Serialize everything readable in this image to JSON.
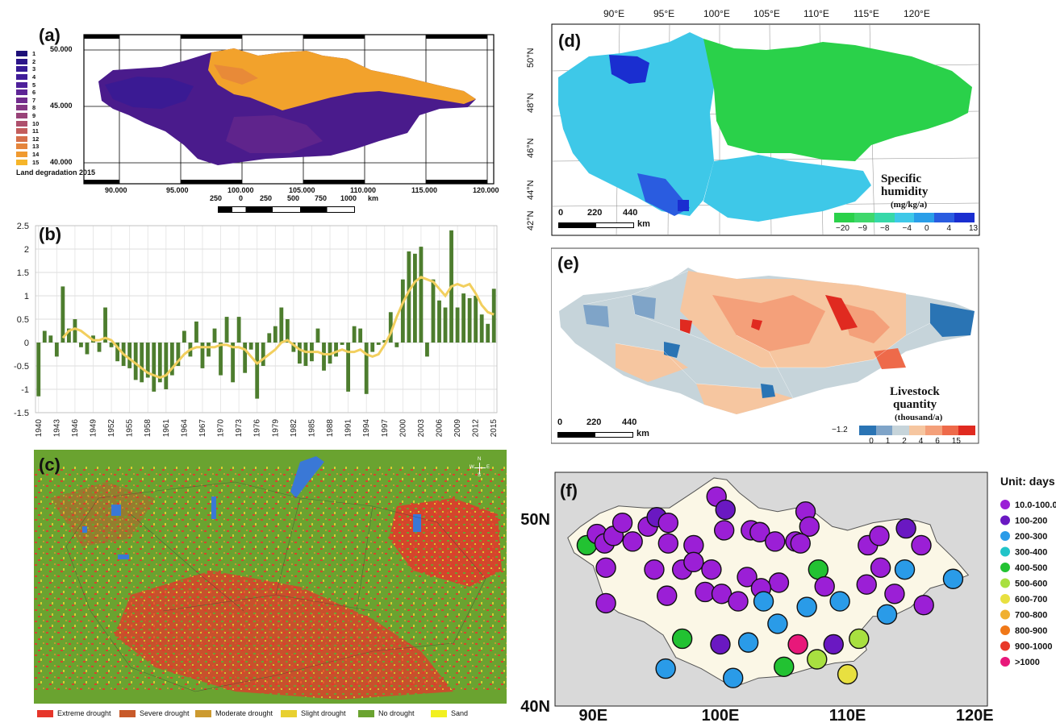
{
  "colors": {
    "veg_green": "#6aa330",
    "drought_red": "#e6362b",
    "water_blue": "#3a78d6",
    "bar_green": "#4d7d2e",
    "trend_yellow": "#f2cf5e",
    "deg_low": "#4a1b8c",
    "deg_high": "#f2a22c"
  },
  "panel_a": {
    "label": "(a)",
    "legend_items": [
      "1",
      "2",
      "3",
      "4",
      "5",
      "6",
      "7",
      "8",
      "9",
      "10",
      "11",
      "12",
      "13",
      "14",
      "15"
    ],
    "legend_colors": [
      "#1d0f78",
      "#2b1589",
      "#361a95",
      "#411d9a",
      "#4e209a",
      "#5e2596",
      "#712b8d",
      "#853683",
      "#994278",
      "#ae4f6c",
      "#c35d5c",
      "#d6704a",
      "#e5853c",
      "#f09a30",
      "#f6b52a"
    ],
    "legend_title": "Land degradation 2015",
    "lat_ticks": [
      "50.000",
      "45.000",
      "40.000"
    ],
    "lon_ticks": [
      "90.000",
      "95.000",
      "100.000",
      "105.000",
      "110.000",
      "115.000",
      "120.000"
    ],
    "scale_labels": [
      "250",
      "0",
      "250",
      "500",
      "750",
      "1000",
      "km"
    ]
  },
  "panel_b": {
    "label": "(b)"
  },
  "chart_data": [
    {
      "type": "bar",
      "panel": "(b)",
      "title": "",
      "xlabel": "",
      "ylabel": "",
      "ylim": [
        -1.5,
        2.5
      ],
      "yticks": [
        "2.5",
        "2",
        "1.5",
        "1",
        "0.5",
        "0",
        "-0.5",
        "-1",
        "-1.5"
      ],
      "xticks": [
        "1940",
        "1943",
        "1946",
        "1949",
        "1952",
        "1955",
        "1958",
        "1961",
        "1964",
        "1967",
        "1970",
        "1973",
        "1976",
        "1979",
        "1982",
        "1985",
        "1988",
        "1991",
        "1994",
        "1997",
        "2000",
        "2003",
        "2006",
        "2009",
        "2012",
        "2015"
      ],
      "x": [
        1940,
        1941,
        1942,
        1943,
        1944,
        1945,
        1946,
        1947,
        1948,
        1949,
        1950,
        1951,
        1952,
        1953,
        1954,
        1955,
        1956,
        1957,
        1958,
        1959,
        1960,
        1961,
        1962,
        1963,
        1964,
        1965,
        1966,
        1967,
        1968,
        1969,
        1970,
        1971,
        1972,
        1973,
        1974,
        1975,
        1976,
        1977,
        1978,
        1979,
        1980,
        1981,
        1982,
        1983,
        1984,
        1985,
        1986,
        1987,
        1988,
        1989,
        1990,
        1991,
        1992,
        1993,
        1994,
        1995,
        1996,
        1997,
        1998,
        1999,
        2000,
        2001,
        2002,
        2003,
        2004,
        2005,
        2006,
        2007,
        2008,
        2009,
        2010,
        2011,
        2012,
        2013,
        2014,
        2015
      ],
      "series": [
        {
          "values": [
            -1.15,
            0.25,
            0.15,
            -0.3,
            1.2,
            0.3,
            0.5,
            -0.1,
            -0.25,
            0.15,
            -0.2,
            0.75,
            -0.1,
            -0.4,
            -0.5,
            -0.55,
            -0.8,
            -0.85,
            -0.75,
            -1.05,
            -0.85,
            -1.0,
            -0.7,
            -0.5,
            0.25,
            -0.3,
            0.45,
            -0.55,
            -0.3,
            0.3,
            -0.7,
            0.55,
            -0.85,
            0.55,
            -0.65,
            -0.15,
            -1.2,
            -0.5,
            0.2,
            0.35,
            0.75,
            0.5,
            -0.2,
            -0.45,
            -0.5,
            -0.4,
            0.3,
            -0.6,
            -0.45,
            -0.3,
            -0.05,
            -1.05,
            0.35,
            0.3,
            -1.1,
            -0.2,
            -0.05,
            0.05,
            0.65,
            -0.1,
            1.35,
            1.95,
            1.9,
            2.05,
            -0.3,
            1.35,
            0.9,
            0.75,
            2.4,
            0.75,
            1.05,
            0.95,
            1.0,
            0.6,
            0.4,
            1.15
          ]
        },
        {
          "values": [
            null,
            null,
            null,
            null,
            0.1,
            0.25,
            0.3,
            0.25,
            0.15,
            0.05,
            0.05,
            0.1,
            0.05,
            -0.1,
            -0.25,
            -0.35,
            -0.45,
            -0.55,
            -0.65,
            -0.7,
            -0.75,
            -0.7,
            -0.55,
            -0.4,
            -0.25,
            -0.15,
            -0.1,
            -0.1,
            -0.1,
            -0.1,
            -0.05,
            -0.05,
            -0.1,
            -0.1,
            -0.15,
            -0.3,
            -0.45,
            -0.35,
            -0.25,
            -0.15,
            0.0,
            0.05,
            -0.05,
            -0.15,
            -0.2,
            -0.2,
            -0.2,
            -0.25,
            -0.25,
            -0.2,
            -0.15,
            -0.2,
            -0.2,
            -0.15,
            -0.25,
            -0.3,
            -0.25,
            -0.05,
            0.2,
            0.55,
            0.85,
            1.1,
            1.3,
            1.4,
            1.35,
            1.3,
            1.15,
            1.0,
            1.2,
            1.25,
            1.2,
            1.25,
            1.05,
            0.8,
            0.65,
            0.6
          ]
        }
      ]
    },
    {
      "type": "scatter",
      "panel": "(f)",
      "title": "",
      "xlabel": "",
      "ylabel": "",
      "xticks": [
        "90E",
        "100E",
        "110E",
        "120E"
      ],
      "yticks": [
        "50N",
        "40N"
      ],
      "xlim": [
        87,
        121
      ],
      "ylim": [
        40,
        52.5
      ],
      "legend_title": "Unit: days",
      "legend": [
        {
          "label": "10.0-100.0",
          "color": "#9b1fd6"
        },
        {
          "label": "100-200",
          "color": "#6a18c2"
        },
        {
          "label": "200-300",
          "color": "#2a9be8"
        },
        {
          "label": "300-400",
          "color": "#21c4c8"
        },
        {
          "label": "400-500",
          "color": "#22c232"
        },
        {
          "label": "500-600",
          "color": "#a8e040"
        },
        {
          "label": "600-700",
          "color": "#e8e040"
        },
        {
          "label": "700-800",
          "color": "#f0b030"
        },
        {
          "label": "800-900",
          "color": "#f07818"
        },
        {
          "label": "900-1000",
          "color": "#e83828"
        },
        {
          "label": ">1000",
          "color": "#e8187a"
        }
      ],
      "points": [
        {
          "lon": 89.5,
          "lat": 48.6,
          "c": 4
        },
        {
          "lon": 90.3,
          "lat": 49.2,
          "c": 0
        },
        {
          "lon": 90.9,
          "lat": 48.7,
          "c": 0
        },
        {
          "lon": 91.6,
          "lat": 49.1,
          "c": 0
        },
        {
          "lon": 92.3,
          "lat": 49.8,
          "c": 0
        },
        {
          "lon": 93.1,
          "lat": 48.8,
          "c": 0
        },
        {
          "lon": 94.3,
          "lat": 49.6,
          "c": 0
        },
        {
          "lon": 95.0,
          "lat": 50.1,
          "c": 1
        },
        {
          "lon": 95.9,
          "lat": 49.8,
          "c": 0
        },
        {
          "lon": 95.9,
          "lat": 48.7,
          "c": 0
        },
        {
          "lon": 97.9,
          "lat": 48.6,
          "c": 0
        },
        {
          "lon": 99.7,
          "lat": 51.2,
          "c": 0
        },
        {
          "lon": 100.4,
          "lat": 50.5,
          "c": 1
        },
        {
          "lon": 100.3,
          "lat": 49.4,
          "c": 0
        },
        {
          "lon": 102.4,
          "lat": 49.4,
          "c": 0
        },
        {
          "lon": 103.1,
          "lat": 49.3,
          "c": 0
        },
        {
          "lon": 104.3,
          "lat": 48.8,
          "c": 0
        },
        {
          "lon": 105.9,
          "lat": 48.8,
          "c": 0
        },
        {
          "lon": 106.7,
          "lat": 50.4,
          "c": 0
        },
        {
          "lon": 107.0,
          "lat": 49.6,
          "c": 0
        },
        {
          "lon": 106.3,
          "lat": 48.7,
          "c": 0
        },
        {
          "lon": 111.6,
          "lat": 48.6,
          "c": 0
        },
        {
          "lon": 112.5,
          "lat": 49.1,
          "c": 0
        },
        {
          "lon": 114.6,
          "lat": 49.5,
          "c": 1
        },
        {
          "lon": 115.8,
          "lat": 48.6,
          "c": 0
        },
        {
          "lon": 91.0,
          "lat": 47.4,
          "c": 0
        },
        {
          "lon": 94.8,
          "lat": 47.3,
          "c": 0
        },
        {
          "lon": 97.0,
          "lat": 47.3,
          "c": 0
        },
        {
          "lon": 97.9,
          "lat": 47.7,
          "c": 0
        },
        {
          "lon": 99.3,
          "lat": 47.3,
          "c": 0
        },
        {
          "lon": 102.1,
          "lat": 46.9,
          "c": 0
        },
        {
          "lon": 104.6,
          "lat": 46.6,
          "c": 0
        },
        {
          "lon": 107.7,
          "lat": 47.3,
          "c": 4
        },
        {
          "lon": 108.2,
          "lat": 46.4,
          "c": 0
        },
        {
          "lon": 111.5,
          "lat": 46.5,
          "c": 0
        },
        {
          "lon": 112.6,
          "lat": 47.4,
          "c": 0
        },
        {
          "lon": 114.5,
          "lat": 47.3,
          "c": 2
        },
        {
          "lon": 118.3,
          "lat": 46.8,
          "c": 2
        },
        {
          "lon": 91.0,
          "lat": 45.5,
          "c": 0
        },
        {
          "lon": 95.8,
          "lat": 45.9,
          "c": 0
        },
        {
          "lon": 98.8,
          "lat": 46.1,
          "c": 0
        },
        {
          "lon": 100.1,
          "lat": 46.0,
          "c": 0
        },
        {
          "lon": 101.4,
          "lat": 45.6,
          "c": 0
        },
        {
          "lon": 103.2,
          "lat": 46.3,
          "c": 0
        },
        {
          "lon": 103.4,
          "lat": 45.6,
          "c": 2
        },
        {
          "lon": 106.8,
          "lat": 45.3,
          "c": 2
        },
        {
          "lon": 109.4,
          "lat": 45.6,
          "c": 2
        },
        {
          "lon": 113.7,
          "lat": 46.0,
          "c": 0
        },
        {
          "lon": 113.1,
          "lat": 44.9,
          "c": 2
        },
        {
          "lon": 116.0,
          "lat": 45.4,
          "c": 0
        },
        {
          "lon": 97.0,
          "lat": 43.6,
          "c": 4
        },
        {
          "lon": 95.7,
          "lat": 42.0,
          "c": 2
        },
        {
          "lon": 100.0,
          "lat": 43.3,
          "c": 1
        },
        {
          "lon": 102.2,
          "lat": 43.4,
          "c": 2
        },
        {
          "lon": 104.5,
          "lat": 44.4,
          "c": 2
        },
        {
          "lon": 106.1,
          "lat": 43.3,
          "c": 10
        },
        {
          "lon": 105.0,
          "lat": 42.1,
          "c": 4
        },
        {
          "lon": 108.9,
          "lat": 43.3,
          "c": 1
        },
        {
          "lon": 110.9,
          "lat": 43.6,
          "c": 5
        },
        {
          "lon": 107.6,
          "lat": 42.5,
          "c": 5
        },
        {
          "lon": 101.0,
          "lat": 41.5,
          "c": 2
        },
        {
          "lon": 110.0,
          "lat": 41.7,
          "c": 6
        }
      ]
    }
  ],
  "panel_c": {
    "label": "(c)",
    "legend": [
      {
        "label": "Extreme drought",
        "color": "#e6362b"
      },
      {
        "label": "Severe drought",
        "color": "#c85a2a"
      },
      {
        "label": "Moderate drought",
        "color": "#cc9a30"
      },
      {
        "label": "Slight drought",
        "color": "#e8d030"
      },
      {
        "label": "No drought",
        "color": "#6aa330"
      },
      {
        "label": "Sand",
        "color": "#f2f020"
      }
    ],
    "compass": {
      "n": "N",
      "s": "S",
      "e": "E",
      "w": "W"
    }
  },
  "panel_d": {
    "label": "(d)",
    "lon_ticks": [
      "90°E",
      "95°E",
      "100°E",
      "105°E",
      "110°E",
      "115°E",
      "120°E"
    ],
    "lat_ticks": [
      "50°N",
      "48°N",
      "46°N",
      "44°N",
      "42°N"
    ],
    "scale": [
      "0",
      "220",
      "440",
      "km"
    ],
    "legend_title_1": "Specific",
    "legend_title_2": "humidity",
    "legend_unit": "(mg/kg/a)",
    "legend_ticks": [
      "−20",
      "−9",
      "−8",
      "−4",
      "0",
      "4",
      "13"
    ],
    "legend_colors": [
      "#2ad14a",
      "#3ed86c",
      "#36d8a8",
      "#3ec8e8",
      "#2a9ee8",
      "#2a5ce0",
      "#1a2ed0"
    ]
  },
  "panel_e": {
    "label": "(e)",
    "scale": [
      "0",
      "220",
      "440",
      "km"
    ],
    "legend_title_1": "Livestock",
    "legend_title_2": "quantity",
    "legend_unit": "(thousand/a)",
    "legend_ticks": [
      "−1.2",
      "0",
      "1",
      "2",
      "4",
      "6",
      "15"
    ],
    "legend_colors": [
      "#2a74b4",
      "#7fa4c8",
      "#c6d4da",
      "#f6c6a0",
      "#f4a07a",
      "#ee6a4a",
      "#e02a20"
    ]
  },
  "panel_f": {
    "label": "(f)"
  }
}
